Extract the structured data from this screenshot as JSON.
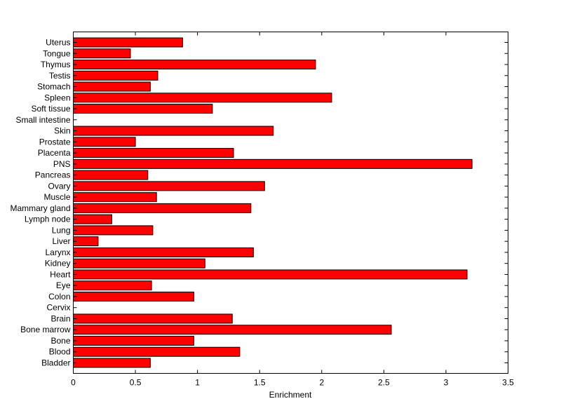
{
  "chart_data": {
    "type": "bar",
    "orientation": "horizontal",
    "title": "",
    "xlabel": "Enrichment",
    "ylabel": "",
    "xlim": [
      0,
      3.5
    ],
    "xticks": [
      "0",
      "0.5",
      "1",
      "1.5",
      "2",
      "2.5",
      "3",
      "3.5"
    ],
    "grid": false,
    "bar_color": "#ff0000",
    "categories": [
      "Uterus",
      "Tongue",
      "Thymus",
      "Testis",
      "Stomach",
      "Spleen",
      "Soft tissue",
      "Small intestine",
      "Skin",
      "Prostate",
      "Placenta",
      "PNS",
      "Pancreas",
      "Ovary",
      "Muscle",
      "Mammary gland",
      "Lymph node",
      "Lung",
      "Liver",
      "Larynx",
      "Kidney",
      "Heart",
      "Eye",
      "Colon",
      "Cervix",
      "Brain",
      "Bone marrow",
      "Bone",
      "Blood",
      "Bladder"
    ],
    "values": [
      0.88,
      0.46,
      1.95,
      0.68,
      0.62,
      2.08,
      1.12,
      0,
      1.61,
      0.5,
      1.29,
      3.21,
      0.6,
      1.54,
      0.67,
      1.43,
      0.31,
      0.64,
      0.2,
      1.45,
      1.06,
      3.17,
      0.63,
      0.97,
      0,
      1.28,
      2.56,
      0.97,
      1.34,
      0.62
    ]
  }
}
